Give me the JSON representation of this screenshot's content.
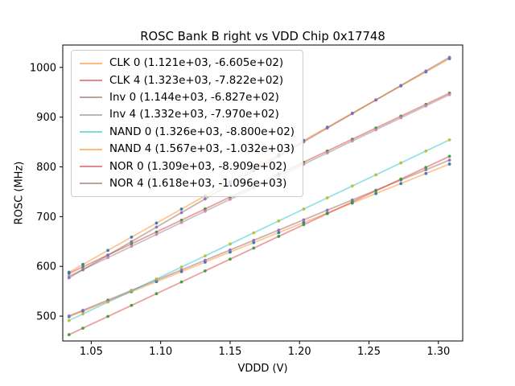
{
  "chart_data": {
    "type": "line",
    "title": "ROSC Bank B right vs VDD Chip 0x17748",
    "xlabel": "VDDD (V)",
    "ylabel": "ROSC (MHz)",
    "xlim": [
      1.0295,
      1.3175
    ],
    "ylim": [
      450,
      1045
    ],
    "xticks": [
      "1.05",
      "1.10",
      "1.15",
      "1.20",
      "1.25",
      "1.30"
    ],
    "xtick_values": [
      1.05,
      1.1,
      1.15,
      1.2,
      1.25,
      1.3
    ],
    "yticks": [
      "500",
      "600",
      "700",
      "800",
      "900",
      "1000"
    ],
    "ytick_values": [
      500,
      600,
      700,
      800,
      900,
      1000
    ],
    "grid": false,
    "legend_position": "upper left",
    "x": [
      1.034,
      1.044,
      1.062,
      1.079,
      1.097,
      1.115,
      1.132,
      1.15,
      1.167,
      1.185,
      1.203,
      1.22,
      1.238,
      1.255,
      1.273,
      1.291,
      1.308
    ],
    "y_model": "y = slope * x + intercept (MHz)",
    "series": [
      {
        "name": "CLK 0",
        "legend_label": "CLK 0 (1.121e+03, -6.605e+02)",
        "slope": 1121.0,
        "intercept": -660.5,
        "line_color": "#ff7f0e",
        "marker_color": "#1f77b4"
      },
      {
        "name": "CLK 4",
        "legend_label": "CLK 4 (1.323e+03, -7.822e+02)",
        "slope": 1323.0,
        "intercept": -782.2,
        "line_color": "#d62728",
        "marker_color": "#2ca02c"
      },
      {
        "name": "Inv 0",
        "legend_label": "Inv 0 (1.144e+03, -6.827e+02)",
        "slope": 1144.0,
        "intercept": -682.7,
        "line_color": "#8c564b",
        "marker_color": "#9467bd"
      },
      {
        "name": "Inv 4",
        "legend_label": "Inv 4 (1.332e+03, -7.970e+02)",
        "slope": 1332.0,
        "intercept": -797.0,
        "line_color": "#7f7f7f",
        "marker_color": "#e377c2"
      },
      {
        "name": "NAND 0",
        "legend_label": "NAND 0 (1.326e+03, -8.800e+02)",
        "slope": 1326.0,
        "intercept": -880.0,
        "line_color": "#17becf",
        "marker_color": "#bcbd22"
      },
      {
        "name": "NAND 4",
        "legend_label": "NAND 4 (1.567e+03, -1.032e+03)",
        "slope": 1567.0,
        "intercept": -1032.0,
        "line_color": "#ff7f0e",
        "marker_color": "#1f77b4"
      },
      {
        "name": "NOR 0",
        "legend_label": "NOR 0 (1.309e+03, -8.909e+02)",
        "slope": 1309.0,
        "intercept": -890.9,
        "line_color": "#d62728",
        "marker_color": "#2ca02c"
      },
      {
        "name": "NOR 4",
        "legend_label": "NOR 4 (1.618e+03, -1.096e+03)",
        "slope": 1618.0,
        "intercept": -1096.0,
        "line_color": "#8c564b",
        "marker_color": "#9467bd"
      }
    ],
    "line_alpha": 0.45,
    "marker_alpha": 0.9,
    "axis_color": "#000000"
  }
}
